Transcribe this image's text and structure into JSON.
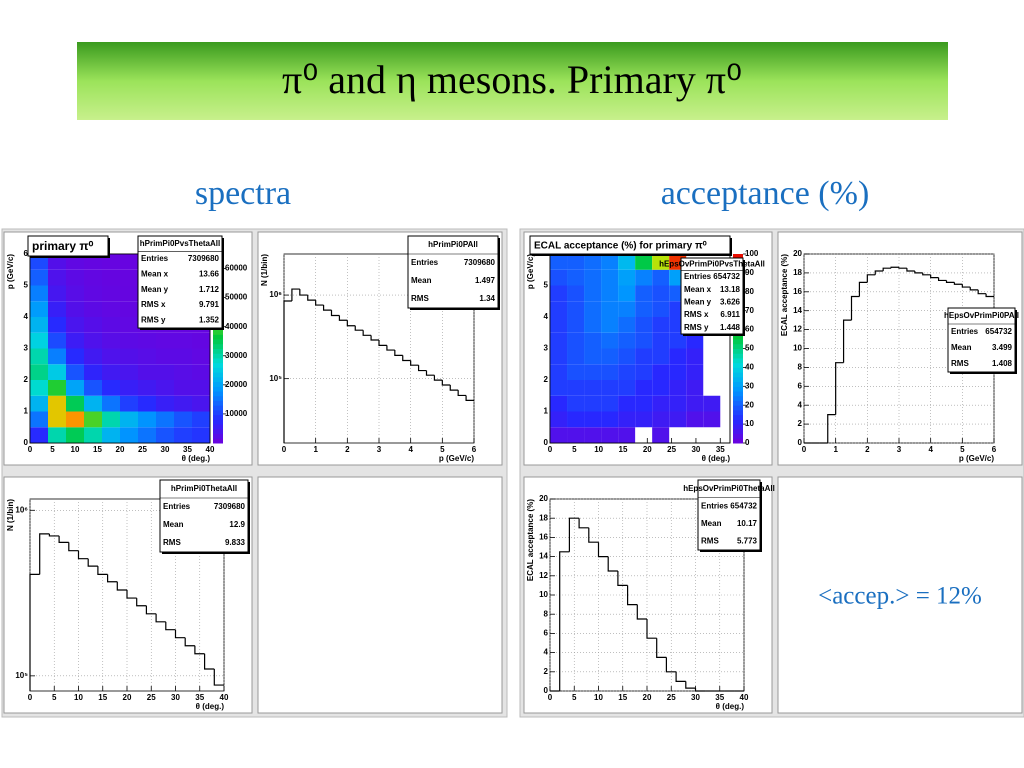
{
  "title": "π⁰ and η mesons. Primary π⁰",
  "headings": [
    "spectra",
    "acceptance (%)"
  ],
  "note": "<accep.> = 12%",
  "chart_data": [
    {
      "type": "heatmap",
      "title": "primary π⁰",
      "xlabel": "θ (deg.)",
      "ylabel": "p (GeV/c)",
      "xlim": [
        0,
        40
      ],
      "xticks": [
        0,
        5,
        10,
        15,
        20,
        25,
        30,
        35,
        40
      ],
      "ylim": [
        0,
        6
      ],
      "yticks": [
        0,
        1,
        2,
        3,
        4,
        5,
        6
      ],
      "zlim": [
        0,
        65000
      ],
      "zticks": [
        10000,
        20000,
        30000,
        40000,
        50000,
        60000
      ],
      "xbins": [
        0,
        4,
        8,
        12,
        16,
        20,
        24,
        28,
        32,
        36,
        40
      ],
      "ybins": [
        0,
        0.5,
        1,
        1.5,
        2,
        2.5,
        3,
        3.5,
        4,
        4.5,
        5,
        5.5,
        6
      ],
      "z": [
        [
          8000,
          30000,
          35000,
          30000,
          22000,
          18000,
          15000,
          12000,
          10000,
          9000
        ],
        [
          15000,
          50000,
          55000,
          40000,
          30000,
          22000,
          18000,
          15000,
          12000,
          10000
        ],
        [
          22000,
          50000,
          35000,
          22000,
          15000,
          10000,
          8000,
          6000,
          5000,
          4000
        ],
        [
          28000,
          38000,
          20000,
          12000,
          8000,
          6000,
          5000,
          4000,
          3000,
          3000
        ],
        [
          32000,
          25000,
          12000,
          7000,
          5000,
          4000,
          3000,
          3000,
          2500,
          2000
        ],
        [
          30000,
          16000,
          8000,
          5000,
          3500,
          3000,
          2500,
          2000,
          2000,
          1500
        ],
        [
          26000,
          11000,
          5500,
          3500,
          2500,
          2000,
          1800,
          1500,
          1500,
          1200
        ],
        [
          22000,
          8000,
          4000,
          2800,
          2000,
          1500,
          1300,
          1200,
          1000,
          1000
        ],
        [
          19000,
          6000,
          3000,
          2000,
          1500,
          1200,
          1000,
          1000,
          900,
          800
        ],
        [
          16000,
          4500,
          2500,
          1600,
          1200,
          1000,
          900,
          800,
          700,
          700
        ],
        [
          13000,
          3500,
          2000,
          1300,
          1000,
          900,
          800,
          700,
          600,
          600
        ],
        [
          11000,
          3000,
          1600,
          1100,
          900,
          800,
          700,
          600,
          600,
          500
        ]
      ],
      "stats": {
        "name": "hPrimPi0PvsThetaAll",
        "labels": [
          "Entries",
          "Mean x",
          "Mean y",
          "RMS x",
          "RMS y"
        ],
        "values": [
          7309680,
          13.66,
          1.712,
          9.791,
          1.352
        ]
      }
    },
    {
      "type": "histogram",
      "ylabel": "N (1/bin)",
      "xlabel": "p (GeV/c)",
      "log_y": true,
      "grid": true,
      "xlim": [
        0,
        6
      ],
      "xticks": [
        0,
        1,
        2,
        3,
        4,
        5,
        6
      ],
      "ylim": [
        17000,
        3100000
      ],
      "yticks": [
        {
          "value": 100000,
          "label": "10⁵"
        },
        {
          "value": 1000000,
          "label": "10⁶"
        }
      ],
      "bins": [
        0,
        0.25,
        0.5,
        0.75,
        1,
        1.25,
        1.5,
        1.75,
        2,
        2.25,
        2.5,
        2.75,
        3,
        3.25,
        3.5,
        3.75,
        4,
        4.25,
        4.5,
        4.75,
        5,
        5.25,
        5.5,
        5.75,
        6
      ],
      "values": [
        850000,
        1180000,
        1000000,
        870000,
        760000,
        660000,
        570000,
        500000,
        430000,
        380000,
        330000,
        290000,
        250000,
        220000,
        190000,
        165000,
        145000,
        125000,
        110000,
        96000,
        84000,
        73000,
        63000,
        55000
      ],
      "stats": {
        "name": "hPrimPi0PAll",
        "labels": [
          "Entries",
          "Mean",
          "RMS"
        ],
        "values": [
          7309680,
          1.497,
          1.34
        ]
      }
    },
    {
      "type": "histogram",
      "ylabel": "N (1/bin)",
      "xlabel": "θ (deg.)",
      "log_y": true,
      "grid": true,
      "xlim": [
        0,
        40
      ],
      "xticks": [
        0,
        5,
        10,
        15,
        20,
        25,
        30,
        35,
        40
      ],
      "ylim": [
        81000,
        1170000
      ],
      "yticks": [
        {
          "value": 100000,
          "label": "10⁵"
        },
        {
          "value": 1000000,
          "label": "10⁶"
        }
      ],
      "bins": [
        0,
        2,
        4,
        6,
        8,
        10,
        12,
        14,
        16,
        18,
        20,
        22,
        24,
        26,
        28,
        30,
        32,
        34,
        36,
        38,
        40
      ],
      "values": [
        410000,
        720000,
        700000,
        640000,
        570000,
        510000,
        460000,
        410000,
        370000,
        330000,
        295000,
        265000,
        237000,
        212000,
        190000,
        170000,
        152000,
        136000,
        110000,
        88000
      ],
      "stats": {
        "name": "hPrimPi0ThetaAll",
        "labels": [
          "Entries",
          "Mean",
          "RMS"
        ],
        "values": [
          7309680,
          12.9,
          9.833
        ]
      }
    },
    {
      "type": "heatmap",
      "title": "ECAL acceptance (%) for primary π⁰",
      "xlabel": "θ (deg.)",
      "ylabel": "p (GeV/c)",
      "xlim": [
        0,
        37
      ],
      "xticks": [
        0,
        5,
        10,
        15,
        20,
        25,
        30,
        35
      ],
      "ylim": [
        0,
        6
      ],
      "yticks": [
        0,
        1,
        2,
        3,
        4,
        5,
        6
      ],
      "zlim": [
        0,
        100
      ],
      "zticks": [
        0,
        10,
        20,
        30,
        40,
        50,
        60,
        70,
        80,
        90,
        100
      ],
      "xbins": [
        0,
        3.5,
        7,
        10.5,
        14,
        17.5,
        21,
        24.5,
        28,
        31.5,
        35
      ],
      "ybins": [
        0,
        0.5,
        1,
        1.5,
        2,
        2.5,
        3,
        3.5,
        4,
        4.5,
        5,
        5.5,
        6
      ],
      "z": [
        [
          5,
          5,
          5,
          5,
          5,
          null,
          5,
          null,
          null,
          null
        ],
        [
          10,
          12,
          12,
          12,
          10,
          10,
          8,
          8,
          5,
          5
        ],
        [
          12,
          15,
          15,
          15,
          12,
          12,
          10,
          10,
          8,
          8
        ],
        [
          15,
          15,
          15,
          15,
          15,
          12,
          12,
          10,
          8,
          null
        ],
        [
          15,
          18,
          18,
          18,
          16,
          15,
          12,
          12,
          10,
          null
        ],
        [
          15,
          18,
          20,
          20,
          18,
          15,
          15,
          12,
          10,
          null
        ],
        [
          15,
          18,
          20,
          22,
          20,
          18,
          15,
          15,
          12,
          null
        ],
        [
          15,
          18,
          22,
          25,
          22,
          18,
          15,
          15,
          12,
          null
        ],
        [
          15,
          18,
          22,
          25,
          25,
          20,
          18,
          15,
          null,
          null
        ],
        [
          15,
          18,
          22,
          25,
          28,
          20,
          18,
          20,
          null,
          null
        ],
        [
          18,
          20,
          22,
          25,
          30,
          25,
          20,
          30,
          null,
          null
        ],
        [
          20,
          20,
          22,
          25,
          35,
          55,
          70,
          95,
          null,
          null
        ]
      ],
      "stats": {
        "name": "hEpsOvPrimPi0PvsThetaAll",
        "labels": [
          "Entries",
          "Mean x",
          "Mean y",
          "RMS x",
          "RMS y"
        ],
        "values": [
          654732,
          13.18,
          3.626,
          6.911,
          1.448
        ]
      }
    },
    {
      "type": "histogram",
      "ylabel": "ECAL acceptance (%)",
      "xlabel": "p (GeV/c)",
      "log_y": false,
      "grid": true,
      "xlim": [
        0,
        6
      ],
      "xticks": [
        0,
        1,
        2,
        3,
        4,
        5,
        6
      ],
      "ylim": [
        0,
        20
      ],
      "yticks": [
        0,
        2,
        4,
        6,
        8,
        10,
        12,
        14,
        16,
        18,
        20
      ],
      "bins": [
        0,
        0.25,
        0.5,
        0.75,
        1,
        1.25,
        1.5,
        1.75,
        2,
        2.25,
        2.5,
        2.75,
        3,
        3.25,
        3.5,
        3.75,
        4,
        4.25,
        4.5,
        4.75,
        5,
        5.25,
        5.5,
        5.75,
        6
      ],
      "values": [
        0,
        0,
        0,
        3,
        8.5,
        13,
        15.5,
        17,
        17.8,
        18.2,
        18.5,
        18.6,
        18.5,
        18.2,
        18,
        17.8,
        17.5,
        17.2,
        17,
        16.8,
        16.5,
        16.2,
        15.8,
        15.5
      ],
      "stats": {
        "name": "hEpsOvPrimPi0PAll",
        "labels": [
          "Entries",
          "Mean",
          "RMS"
        ],
        "values": [
          654732,
          3.499,
          1.408
        ]
      }
    },
    {
      "type": "histogram",
      "ylabel": "ECAL acceptance (%)",
      "xlabel": "θ (deg.)",
      "log_y": false,
      "grid": true,
      "xlim": [
        0,
        40
      ],
      "xticks": [
        0,
        5,
        10,
        15,
        20,
        25,
        30,
        35,
        40
      ],
      "ylim": [
        0,
        20
      ],
      "yticks": [
        0,
        2,
        4,
        6,
        8,
        10,
        12,
        14,
        16,
        18,
        20
      ],
      "bins": [
        0,
        2,
        4,
        6,
        8,
        10,
        12,
        14,
        16,
        18,
        20,
        22,
        24,
        26,
        28,
        30,
        32,
        34,
        36,
        38,
        40
      ],
      "values": [
        0,
        14.5,
        18,
        17,
        15.5,
        14,
        12.5,
        11,
        9,
        7.5,
        5.5,
        3.5,
        2,
        1,
        0.3,
        0,
        0,
        0,
        0,
        0
      ],
      "stats": {
        "name": "hEpsOvPrimPi0ThetaAll",
        "labels": [
          "Entries",
          "Mean",
          "RMS"
        ],
        "values": [
          654732,
          10.17,
          5.773
        ]
      }
    }
  ]
}
